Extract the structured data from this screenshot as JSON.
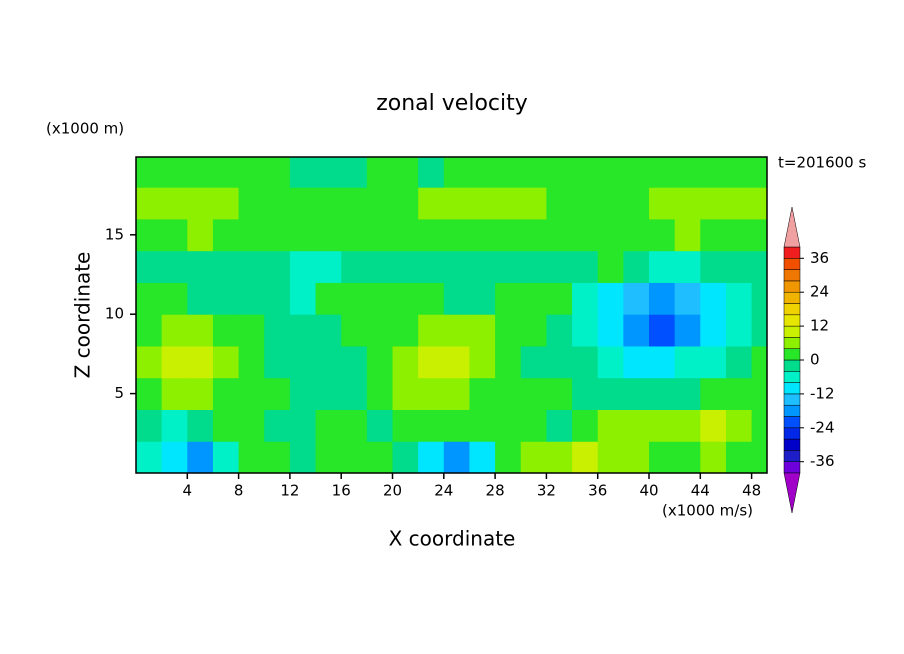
{
  "chart_data": {
    "type": "contour",
    "title": "zonal velocity",
    "xlabel": "X coordinate",
    "ylabel": "Z coordinate",
    "x_unit": "(x1000 m/s)",
    "y_unit": "(x1000 m)",
    "annotation": "t=201600 s",
    "xlim": [
      0,
      49.2
    ],
    "ylim": [
      0,
      19.9
    ],
    "xticks": [
      4,
      8,
      12,
      16,
      20,
      24,
      28,
      32,
      36,
      40,
      44,
      48
    ],
    "yticks": [
      5,
      10,
      15
    ],
    "field": {
      "x": [
        1,
        3,
        5,
        7,
        9,
        11,
        13,
        15,
        17,
        19,
        21,
        23,
        25,
        27,
        29,
        31,
        33,
        35,
        37,
        39,
        41,
        43,
        45,
        47,
        49
      ],
      "y": [
        1,
        3,
        5,
        7,
        9,
        11,
        13,
        15,
        17,
        19
      ],
      "values": [
        [
          -6,
          -10,
          -18,
          -6,
          2,
          2,
          -2,
          2,
          2,
          2,
          -2,
          -10,
          -18,
          -10,
          2,
          6,
          6,
          10,
          6,
          6,
          2,
          2,
          6,
          2,
          2
        ],
        [
          -2,
          -6,
          -2,
          2,
          2,
          -2,
          -2,
          2,
          2,
          -2,
          2,
          2,
          2,
          2,
          2,
          2,
          -2,
          2,
          6,
          6,
          6,
          6,
          10,
          6,
          2
        ],
        [
          2,
          6,
          6,
          2,
          2,
          2,
          -2,
          -2,
          -2,
          2,
          6,
          6,
          6,
          2,
          2,
          2,
          2,
          -2,
          -2,
          -2,
          -2,
          -2,
          2,
          2,
          2
        ],
        [
          6,
          10,
          10,
          6,
          2,
          -2,
          -2,
          -2,
          -2,
          2,
          6,
          10,
          10,
          6,
          2,
          -2,
          -2,
          -2,
          -6,
          -10,
          -10,
          -6,
          -6,
          -2,
          2
        ],
        [
          2,
          6,
          6,
          2,
          2,
          -2,
          -2,
          -2,
          2,
          2,
          2,
          6,
          6,
          6,
          2,
          2,
          -2,
          -6,
          -10,
          -18,
          -22,
          -18,
          -10,
          -6,
          -2
        ],
        [
          2,
          2,
          -2,
          -2,
          -2,
          -2,
          -6,
          2,
          2,
          2,
          2,
          2,
          -2,
          -2,
          2,
          2,
          2,
          -6,
          -10,
          -14,
          -18,
          -14,
          -10,
          -6,
          -2
        ],
        [
          -2,
          -2,
          -2,
          -2,
          -2,
          -2,
          -6,
          -6,
          -2,
          -2,
          -2,
          -2,
          -2,
          -2,
          -2,
          -2,
          -2,
          -2,
          2,
          -2,
          -6,
          -6,
          -2,
          -2,
          -2
        ],
        [
          2,
          2,
          6,
          2,
          2,
          2,
          2,
          2,
          2,
          2,
          2,
          2,
          2,
          2,
          2,
          2,
          2,
          2,
          2,
          2,
          2,
          6,
          2,
          2,
          2
        ],
        [
          6,
          6,
          6,
          6,
          2,
          2,
          2,
          2,
          2,
          2,
          2,
          6,
          6,
          6,
          6,
          6,
          2,
          2,
          2,
          2,
          6,
          6,
          6,
          6,
          6
        ],
        [
          2,
          2,
          2,
          2,
          2,
          2,
          -2,
          -2,
          -2,
          2,
          2,
          -2,
          2,
          2,
          2,
          2,
          2,
          2,
          2,
          2,
          2,
          2,
          2,
          2,
          2
        ]
      ]
    },
    "colorbar": {
      "levels": [
        -40,
        -36,
        -32,
        -28,
        -24,
        -20,
        -16,
        -12,
        -8,
        -4,
        0,
        4,
        8,
        12,
        16,
        20,
        24,
        28,
        32,
        36,
        40
      ],
      "colors": [
        "#a000c8",
        "#6e00dc",
        "#1e1ec8",
        "#0000c8",
        "#0028e6",
        "#0050ff",
        "#0096ff",
        "#1ebeff",
        "#00e6ff",
        "#00f0c8",
        "#00dc8c",
        "#28e628",
        "#8cf000",
        "#c8f000",
        "#e6e600",
        "#f0d200",
        "#f0b400",
        "#f09600",
        "#f07800",
        "#f05000",
        "#f01e1e",
        "#f0a0a0"
      ],
      "ticks": [
        36,
        24,
        12,
        0,
        -12,
        -24,
        -36
      ]
    }
  }
}
